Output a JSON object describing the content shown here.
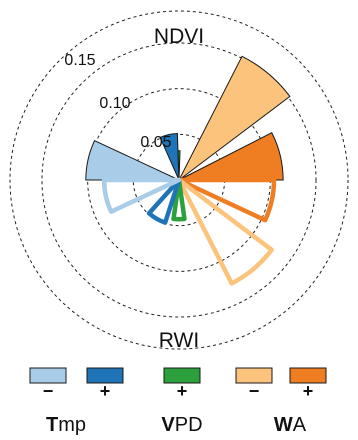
{
  "chart_data": {
    "type": "polar-bar",
    "top_label": "NDVI",
    "bottom_label": "RWI",
    "rings": [
      "0.05",
      "0.10",
      "0.15"
    ],
    "ring_values": [
      0.05,
      0.1,
      0.15
    ],
    "r_max": 0.185,
    "colors": {
      "tmp_neg": "#a9cde8",
      "tmp_pos": "#1f73b7",
      "vpd_pos": "#2ca03c",
      "wa_neg": "#fbc37c",
      "wa_pos": "#ef7d22"
    },
    "ndvi_wedges": [
      {
        "group": "tmp_neg",
        "start_deg": 270,
        "end_deg": 295,
        "value": 0.102
      },
      {
        "group": "tmp_pos",
        "start_deg": 336,
        "end_deg": 358,
        "value": 0.051
      },
      {
        "group": "vpd_pos",
        "start_deg": 358,
        "end_deg": 2,
        "value": 0.032
      },
      {
        "group": "wa_neg",
        "start_deg": 27,
        "end_deg": 53,
        "value": 0.152
      },
      {
        "group": "wa_pos",
        "start_deg": 63,
        "end_deg": 90,
        "value": 0.114
      }
    ],
    "rwi_wedges": [
      {
        "group": "wa_pos",
        "start_deg": 90,
        "end_deg": 115,
        "value": 0.104
      },
      {
        "group": "wa_neg",
        "start_deg": 127,
        "end_deg": 153,
        "value": 0.127
      },
      {
        "group": "vpd_pos",
        "start_deg": 172,
        "end_deg": 188,
        "value": 0.043
      },
      {
        "group": "tmp_pos",
        "start_deg": 198,
        "end_deg": 222,
        "value": 0.049
      },
      {
        "group": "tmp_neg",
        "start_deg": 245,
        "end_deg": 270,
        "value": 0.082
      }
    ],
    "legend": [
      {
        "group": "tmp_neg",
        "sign": "−"
      },
      {
        "group": "tmp_pos",
        "sign": "+"
      },
      {
        "group": "vpd_pos",
        "sign": "+"
      },
      {
        "group": "wa_neg",
        "sign": "−"
      },
      {
        "group": "wa_pos",
        "sign": "+"
      }
    ],
    "legend_labels": [
      {
        "bold": "T",
        "rest": "mp"
      },
      {
        "bold": "V",
        "rest": "PD"
      },
      {
        "bold": "W",
        "rest": "A"
      }
    ]
  }
}
